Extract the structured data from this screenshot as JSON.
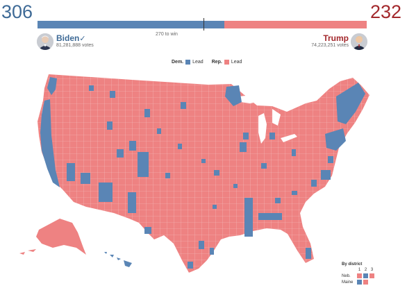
{
  "header": {
    "dem_electoral": "306",
    "rep_electoral": "232",
    "threshold_label": "270 to win",
    "dem_share": 0.5669,
    "threshold_share": 0.5
  },
  "candidates": {
    "dem": {
      "name": "Biden",
      "check": "✓",
      "votes": "81,281,888 votes",
      "color": "#3e6a96"
    },
    "rep": {
      "name": "Trump",
      "votes": "74,223,251 votes",
      "color": "#a3282c"
    }
  },
  "legend": {
    "dem_label": "Dem.",
    "dem_lead": "Lead",
    "rep_label": "Rep.",
    "rep_lead": "Lead",
    "dem_color": "#5a85b5",
    "rep_color": "#ee8282"
  },
  "district_legend": {
    "title": "By district",
    "columns": [
      "1",
      "2",
      "3"
    ],
    "rows": [
      {
        "state": "Neb.",
        "cells": [
          "rep",
          "dem",
          "rep"
        ]
      },
      {
        "state": "Maine",
        "cells": [
          "dem",
          "rep"
        ]
      }
    ]
  },
  "icons": {
    "dem_avatar": "person-avatar",
    "rep_avatar": "person-avatar",
    "checkmark": "check-icon"
  }
}
